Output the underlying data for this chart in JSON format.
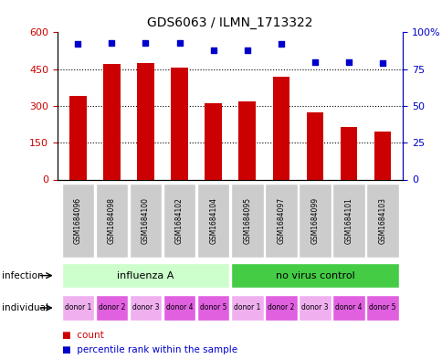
{
  "title": "GDS6063 / ILMN_1713322",
  "samples": [
    "GSM1684096",
    "GSM1684098",
    "GSM1684100",
    "GSM1684102",
    "GSM1684104",
    "GSM1684095",
    "GSM1684097",
    "GSM1684099",
    "GSM1684101",
    "GSM1684103"
  ],
  "counts": [
    340,
    470,
    475,
    455,
    310,
    320,
    420,
    275,
    215,
    195
  ],
  "percentiles": [
    92,
    93,
    93,
    93,
    88,
    88,
    92,
    80,
    80,
    79
  ],
  "ylim_left": [
    0,
    600
  ],
  "ylim_right": [
    0,
    100
  ],
  "yticks_left": [
    0,
    150,
    300,
    450,
    600
  ],
  "yticks_right": [
    0,
    25,
    50,
    75,
    100
  ],
  "infection_groups": [
    {
      "label": "influenza A",
      "start": 0,
      "end": 5,
      "color": "#ccffcc"
    },
    {
      "label": "no virus control",
      "start": 5,
      "end": 10,
      "color": "#44cc44"
    }
  ],
  "individual_labels": [
    "donor 1",
    "donor 2",
    "donor 3",
    "donor 4",
    "donor 5",
    "donor 1",
    "donor 2",
    "donor 3",
    "donor 4",
    "donor 5"
  ],
  "individual_colors": [
    "#f0b0f0",
    "#e060e0",
    "#f0b0f0",
    "#e060e0",
    "#e060e0",
    "#f0b0f0",
    "#e060e0",
    "#f0b0f0",
    "#e060e0",
    "#e060e0"
  ],
  "bar_color": "#cc0000",
  "dot_color": "#0000cc",
  "sample_box_color": "#cccccc",
  "legend_count_label": "count",
  "legend_pct_label": "percentile rank within the sample",
  "infection_label": "infection",
  "individual_label": "individual"
}
